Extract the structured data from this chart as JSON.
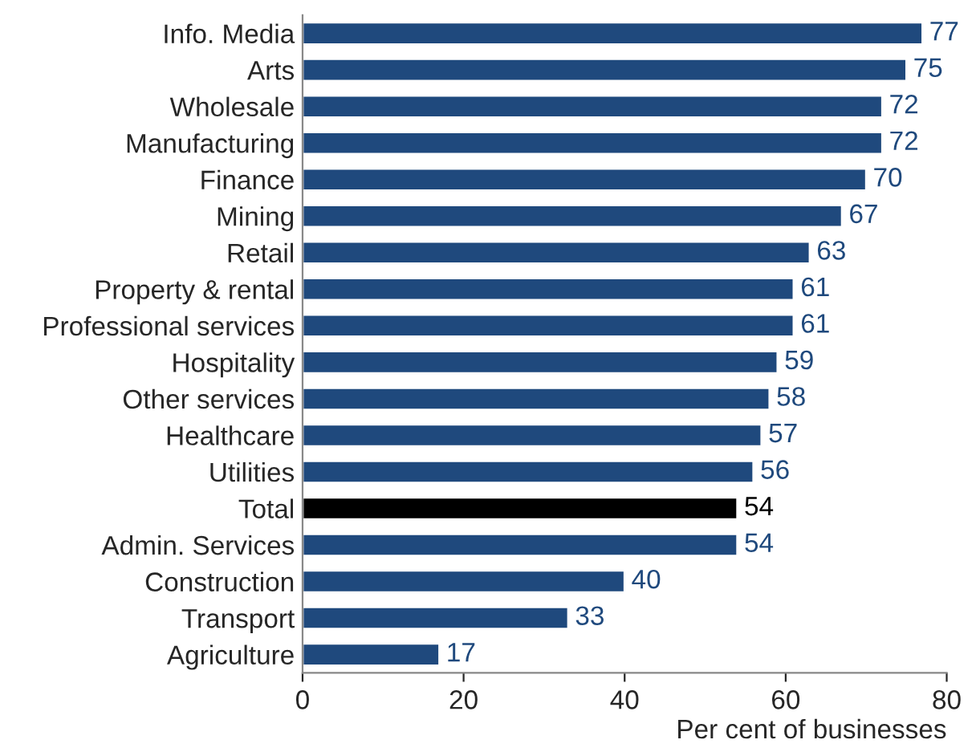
{
  "chart_data": {
    "type": "bar",
    "orientation": "horizontal",
    "xlabel": "Per cent of businesses",
    "categories": [
      "Info. Media",
      "Arts",
      "Wholesale",
      "Manufacturing",
      "Finance",
      "Mining",
      "Retail",
      "Property & rental",
      "Professional services",
      "Hospitality",
      "Other services",
      "Healthcare",
      "Utilities",
      "Total",
      "Admin. Services",
      "Construction",
      "Transport",
      "Agriculture"
    ],
    "values": [
      77,
      75,
      72,
      72,
      70,
      67,
      63,
      61,
      61,
      59,
      58,
      57,
      56,
      54,
      54,
      40,
      33,
      17
    ],
    "colors": [
      "#1f497d",
      "#1f497d",
      "#1f497d",
      "#1f497d",
      "#1f497d",
      "#1f497d",
      "#1f497d",
      "#1f497d",
      "#1f497d",
      "#1f497d",
      "#1f497d",
      "#1f497d",
      "#1f497d",
      "#000000",
      "#1f497d",
      "#1f497d",
      "#1f497d",
      "#1f497d"
    ],
    "xlim": [
      0,
      80
    ],
    "xticks": [
      0,
      20,
      40,
      60,
      80
    ],
    "grid": false,
    "data_labels": true
  }
}
